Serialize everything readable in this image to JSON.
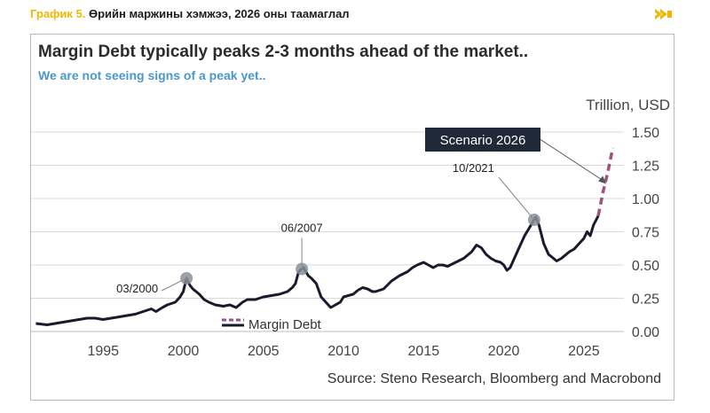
{
  "caption": {
    "label": "График 5.",
    "text": " Өрийн маржины хэмжээ, 2026 оны таамаглал"
  },
  "nav": {
    "icon": "double-chevron-right-icon"
  },
  "footer": {
    "source": "Source: Steno Research, Bloomberg and Macrobond"
  },
  "colors": {
    "line": "#1a1a2e",
    "scenario": "#a0527d",
    "marker": "#8a9096",
    "accent": "#f2b705",
    "subtitle": "#4a97c9"
  },
  "chart_data": {
    "type": "line",
    "title": "Margin Debt typically peaks 2-3 months ahead of the market..",
    "subtitle": "We are not seeing signs of a peak yet..",
    "ylabel": "Trillion, USD",
    "xlabel": "",
    "xlim": [
      1990.5,
      2027.5
    ],
    "ylim": [
      0,
      1.5
    ],
    "x_ticks": [
      1995,
      2000,
      2005,
      2010,
      2015,
      2020,
      2025
    ],
    "y_ticks": [
      0.0,
      0.25,
      0.5,
      0.75,
      1.0,
      1.25,
      1.5
    ],
    "y_tick_labels": [
      "0.00",
      "0.25",
      "0.50",
      "0.75",
      "1.00",
      "1.25",
      "1.50"
    ],
    "grid": "horizontal",
    "legend": [
      {
        "name": "Margin Debt",
        "style": "solid"
      },
      {
        "name": "",
        "style": "dashed"
      }
    ],
    "series": [
      {
        "name": "Margin Debt",
        "x": [
          1990.8,
          1991.5,
          1992,
          1992.5,
          1993,
          1993.5,
          1994,
          1994.5,
          1995,
          1995.5,
          1996,
          1996.5,
          1997,
          1997.5,
          1998,
          1998.3,
          1998.7,
          1999,
          1999.5,
          1999.8,
          2000.0,
          2000.2,
          2000.4,
          2000.6,
          2000.8,
          2001.0,
          2001.3,
          2001.6,
          2002,
          2002.5,
          2002.9,
          2003.3,
          2003.7,
          2004,
          2004.5,
          2005,
          2005.5,
          2006,
          2006.5,
          2006.8,
          2007.0,
          2007.2,
          2007.5,
          2007.8,
          2008.0,
          2008.3,
          2008.6,
          2008.9,
          2009.2,
          2009.5,
          2009.8,
          2010,
          2010.3,
          2010.6,
          2010.9,
          2011.2,
          2011.5,
          2011.8,
          2012,
          2012.5,
          2013,
          2013.5,
          2014,
          2014.3,
          2014.6,
          2015,
          2015.3,
          2015.6,
          2015.9,
          2016.2,
          2016.5,
          2017,
          2017.5,
          2018,
          2018.3,
          2018.6,
          2018.9,
          2019.2,
          2019.5,
          2019.8,
          2020.0,
          2020.2,
          2020.4,
          2020.7,
          2021,
          2021.3,
          2021.6,
          2021.8,
          2022.0,
          2022.2,
          2022.5,
          2022.8,
          2023.0,
          2023.3,
          2023.6,
          2023.9,
          2024.1,
          2024.4,
          2024.7,
          2025.0,
          2025.2,
          2025.4,
          2025.6,
          2025.9
        ],
        "y": [
          0.06,
          0.05,
          0.06,
          0.07,
          0.08,
          0.09,
          0.1,
          0.1,
          0.09,
          0.1,
          0.11,
          0.12,
          0.13,
          0.15,
          0.17,
          0.15,
          0.18,
          0.2,
          0.22,
          0.26,
          0.3,
          0.4,
          0.35,
          0.32,
          0.3,
          0.28,
          0.24,
          0.22,
          0.2,
          0.19,
          0.2,
          0.18,
          0.22,
          0.24,
          0.24,
          0.26,
          0.27,
          0.28,
          0.3,
          0.33,
          0.36,
          0.45,
          0.48,
          0.42,
          0.4,
          0.36,
          0.26,
          0.22,
          0.18,
          0.2,
          0.22,
          0.26,
          0.27,
          0.28,
          0.31,
          0.33,
          0.32,
          0.3,
          0.3,
          0.32,
          0.38,
          0.42,
          0.45,
          0.48,
          0.5,
          0.52,
          0.5,
          0.48,
          0.5,
          0.5,
          0.49,
          0.52,
          0.55,
          0.6,
          0.65,
          0.63,
          0.58,
          0.55,
          0.53,
          0.52,
          0.5,
          0.46,
          0.48,
          0.56,
          0.64,
          0.72,
          0.78,
          0.82,
          0.86,
          0.8,
          0.66,
          0.58,
          0.56,
          0.53,
          0.55,
          0.58,
          0.6,
          0.62,
          0.66,
          0.7,
          0.75,
          0.72,
          0.8,
          0.87
        ]
      },
      {
        "name": "Scenario 2026",
        "style": "dashed",
        "x": [
          2025.9,
          2026.2,
          2026.5,
          2026.8
        ],
        "y": [
          0.87,
          1.05,
          1.2,
          1.38
        ]
      }
    ],
    "markers": [
      {
        "label": "03/2000",
        "x": 2000.2,
        "y": 0.4
      },
      {
        "label": "06/2007",
        "x": 2007.4,
        "y": 0.47
      },
      {
        "label": "10/2021",
        "x": 2021.9,
        "y": 0.84
      }
    ],
    "annotations": [
      {
        "text": "Scenario 2026",
        "points_to_x": 2026.4,
        "points_to_y": 1.11
      }
    ]
  }
}
